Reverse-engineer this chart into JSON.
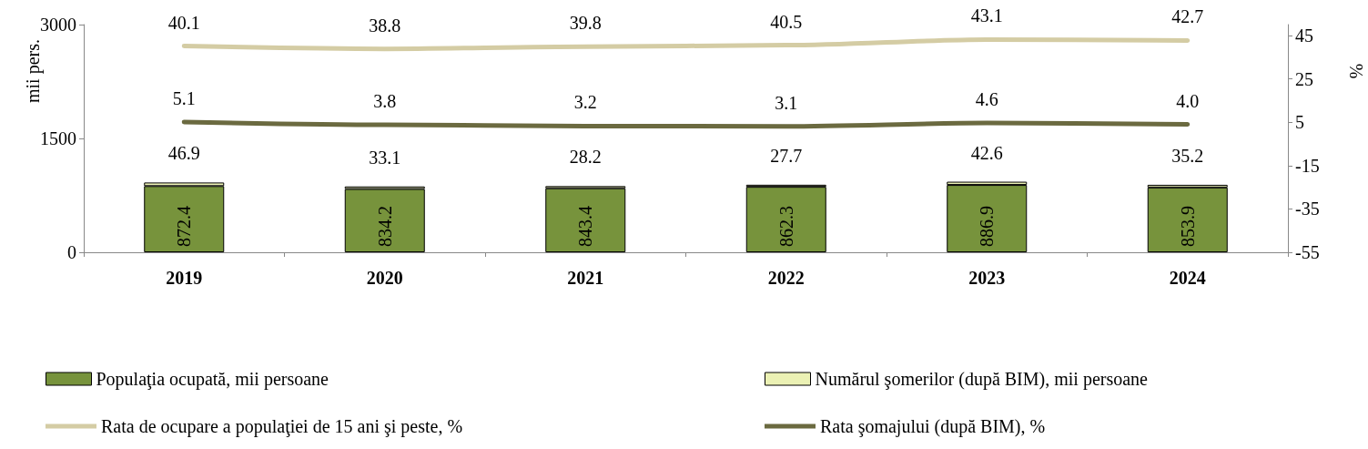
{
  "chart_data": {
    "type": "bar",
    "stacked": true,
    "categories": [
      "2019",
      "2020",
      "2021",
      "2022",
      "2023",
      "2024"
    ],
    "ylabel": "mii pers.",
    "y2label": "%",
    "ylim": [
      0,
      3000
    ],
    "yticks": [
      0,
      1500,
      3000
    ],
    "y2lim": [
      -55,
      50
    ],
    "y2ticks": [
      -55,
      -35,
      -15,
      5,
      25,
      45
    ],
    "series": [
      {
        "name": "Populaţia ocupată, mii persoane",
        "color": "#77933c",
        "values": [
          872.4,
          834.2,
          843.4,
          862.3,
          886.9,
          853.9
        ]
      },
      {
        "name": "Numărul şomerilor (după BIM), mii persoane",
        "color": "#ebf1b4",
        "values": [
          46.9,
          33.1,
          28.2,
          27.7,
          42.6,
          35.2
        ]
      },
      {
        "name": "Rata de ocupare a populaţiei de 15 ani şi peste, %",
        "type": "line",
        "axis": "y2",
        "color": "#d4cca4",
        "values": [
          40.1,
          38.8,
          39.8,
          40.5,
          43.1,
          42.7
        ]
      },
      {
        "name": "Rata şomajului (după BIM), %",
        "type": "line",
        "axis": "y2",
        "color": "#6b6a40",
        "values": [
          5.1,
          3.8,
          3.2,
          3.1,
          4.6,
          4.0
        ],
        "value_labels": [
          "5.1",
          "3.8",
          "3.2",
          "3.1",
          "4.6",
          "4.0"
        ]
      }
    ],
    "data_labels": true,
    "marker": "none",
    "grid": false,
    "legend": "bottom"
  }
}
